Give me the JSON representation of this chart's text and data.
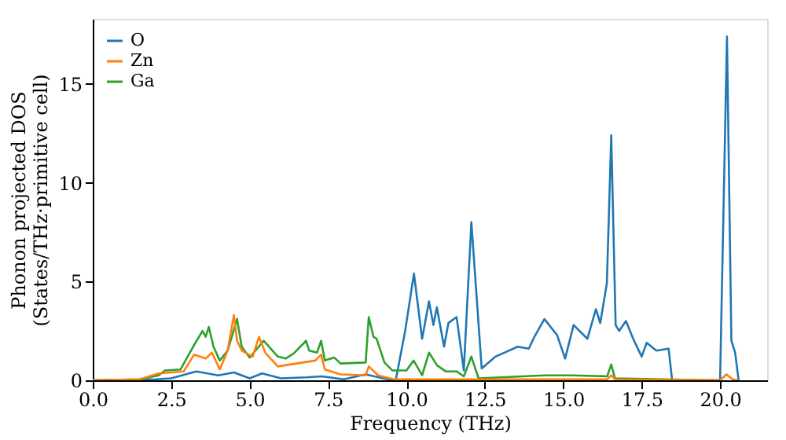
{
  "chart_data": {
    "type": "line",
    "xlabel": "Frequency (THz)",
    "ylabel": "Phonon projected DOS\n(States/THz·primitive cell)",
    "xlim": [
      0,
      21.5
    ],
    "ylim": [
      0,
      18.3
    ],
    "xticks": [
      {
        "value": 0,
        "label": "0.0"
      },
      {
        "value": 2.5,
        "label": "2.5"
      },
      {
        "value": 5,
        "label": "5.0"
      },
      {
        "value": 7.5,
        "label": "7.5"
      },
      {
        "value": 10,
        "label": "10.0"
      },
      {
        "value": 12.5,
        "label": "12.5"
      },
      {
        "value": 15,
        "label": "15.0"
      },
      {
        "value": 17.5,
        "label": "17.5"
      },
      {
        "value": 20,
        "label": "20.0"
      }
    ],
    "yticks": [
      0,
      5,
      10,
      15
    ],
    "grid": false,
    "legend": "top left",
    "marker": "none",
    "line_style": "solid",
    "series": [
      {
        "name": "O",
        "color": "#1f77b4",
        "x": [
          0,
          2,
          2.5,
          3.3,
          4.0,
          4.5,
          5.0,
          5.4,
          6.0,
          6.8,
          7.3,
          8.0,
          8.7,
          9.4,
          9.66,
          9.96,
          10.24,
          10.5,
          10.72,
          10.86,
          10.97,
          11.2,
          11.34,
          11.6,
          11.83,
          12.07,
          12.4,
          12.84,
          13.55,
          13.9,
          14.08,
          14.4,
          14.8,
          15.06,
          15.33,
          15.77,
          16.04,
          16.18,
          16.39,
          16.53,
          16.67,
          16.78,
          17.0,
          17.23,
          17.5,
          17.66,
          17.97,
          18.36,
          18.47,
          20.0,
          20.22,
          20.36,
          20.48,
          20.59
        ],
        "values": [
          0,
          0.05,
          0.1,
          0.45,
          0.25,
          0.4,
          0.1,
          0.35,
          0.1,
          0.15,
          0.2,
          0.05,
          0.3,
          0.05,
          0,
          2.5,
          5.4,
          2.1,
          4.0,
          2.8,
          3.7,
          1.7,
          2.9,
          3.2,
          0.5,
          8.0,
          0.6,
          1.2,
          1.7,
          1.6,
          2.2,
          3.1,
          2.3,
          1.1,
          2.8,
          2.1,
          3.6,
          2.9,
          4.9,
          12.4,
          2.8,
          2.5,
          3.0,
          2.1,
          1.2,
          1.9,
          1.5,
          1.6,
          0,
          0,
          17.4,
          2.0,
          1.4,
          0
        ]
      },
      {
        "name": "Zn",
        "color": "#ff7f0e",
        "x": [
          0,
          1.5,
          2.1,
          2.9,
          3.23,
          3.6,
          3.8,
          4.05,
          4.3,
          4.5,
          4.6,
          4.75,
          5.1,
          5.3,
          5.5,
          5.9,
          6.5,
          7.1,
          7.28,
          7.4,
          7.9,
          8.7,
          8.8,
          9.1,
          9.6,
          12.0,
          16.4,
          16.53,
          16.65,
          20.0,
          20.2,
          20.4,
          20.59
        ],
        "values": [
          0,
          0.05,
          0.35,
          0.45,
          1.3,
          1.1,
          1.4,
          0.55,
          1.5,
          3.3,
          2.0,
          1.5,
          1.2,
          2.2,
          1.4,
          0.7,
          0.85,
          1.0,
          1.3,
          0.55,
          0.3,
          0.25,
          0.7,
          0.25,
          0.05,
          0.05,
          0.05,
          0.25,
          0.05,
          0,
          0.3,
          0.05,
          0
        ]
      },
      {
        "name": "Ga",
        "color": "#2ca02c",
        "x": [
          0,
          1.5,
          2.1,
          2.3,
          2.8,
          3.2,
          3.5,
          3.6,
          3.7,
          3.85,
          4.05,
          4.3,
          4.6,
          4.75,
          5.0,
          5.45,
          5.9,
          6.15,
          6.4,
          6.8,
          6.9,
          7.15,
          7.28,
          7.4,
          7.7,
          7.9,
          8.7,
          8.8,
          8.95,
          9.05,
          9.3,
          9.55,
          10.0,
          10.23,
          10.5,
          10.72,
          10.98,
          11.25,
          11.6,
          11.83,
          12.07,
          12.3,
          14.4,
          15.3,
          16.4,
          16.53,
          16.65,
          18.2,
          20.0
        ],
        "values": [
          0,
          0.05,
          0.25,
          0.5,
          0.55,
          1.7,
          2.5,
          2.2,
          2.7,
          1.7,
          1.0,
          1.5,
          3.1,
          1.7,
          1.15,
          2.0,
          1.2,
          1.1,
          1.35,
          2.0,
          1.5,
          1.4,
          2.0,
          1.0,
          1.15,
          0.85,
          0.9,
          3.2,
          2.2,
          2.1,
          0.9,
          0.5,
          0.5,
          1.0,
          0.25,
          1.4,
          0.75,
          0.45,
          0.45,
          0.2,
          1.2,
          0.1,
          0.25,
          0.25,
          0.2,
          0.8,
          0.1,
          0.05,
          0
        ]
      }
    ]
  }
}
